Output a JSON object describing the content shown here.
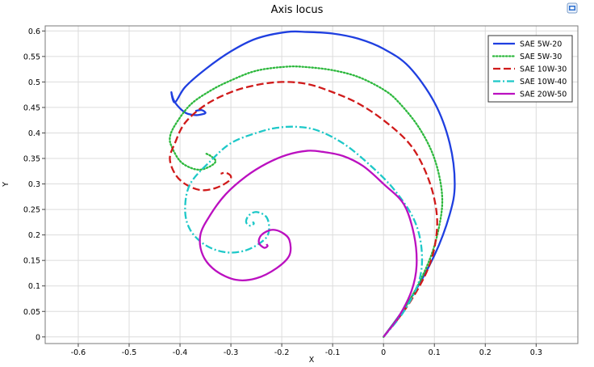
{
  "title": "Axis locus",
  "icons": {
    "export": "export-image-icon"
  },
  "chart_data": {
    "type": "line",
    "title": "Axis locus",
    "xlabel": "X",
    "ylabel": "Y",
    "xlim": [
      -0.665,
      0.382
    ],
    "ylim": [
      -0.013,
      0.61
    ],
    "grid": true,
    "legend_position": "top-right",
    "xticks": [
      -0.6,
      -0.5,
      -0.4,
      -0.3,
      -0.2,
      -0.1,
      0,
      0.1,
      0.2,
      0.3
    ],
    "yticks": [
      0,
      0.05,
      0.1,
      0.15,
      0.2,
      0.25,
      0.3,
      0.35,
      0.4,
      0.45,
      0.5,
      0.55,
      0.6
    ],
    "xtick_labels": [
      "-0.6",
      "-0.5",
      "-0.4",
      "-0.3",
      "-0.2",
      "-0.1",
      "0",
      "0.1",
      "0.2",
      "0.3"
    ],
    "ytick_labels": [
      "0",
      "0.05",
      "0.1",
      "0.15",
      "0.2",
      "0.25",
      "0.3",
      "0.35",
      "0.4",
      "0.45",
      "0.5",
      "0.55",
      "0.6"
    ],
    "series": [
      {
        "name": "SAE 5W-20",
        "color": "#1f3fe0",
        "dash": "solid",
        "x": [
          0.0,
          0.05,
          0.1,
          0.13,
          0.14,
          0.13,
          0.1,
          0.05,
          0.0,
          -0.05,
          -0.1,
          -0.15,
          -0.19,
          -0.25,
          -0.3,
          -0.35,
          -0.39,
          -0.41,
          -0.417,
          -0.41,
          -0.39,
          -0.37,
          -0.355,
          -0.35,
          -0.358,
          -0.37
        ],
        "y": [
          0.0,
          0.07,
          0.16,
          0.24,
          0.3,
          0.38,
          0.46,
          0.53,
          0.565,
          0.585,
          0.595,
          0.598,
          0.598,
          0.585,
          0.56,
          0.525,
          0.49,
          0.46,
          0.48,
          0.46,
          0.44,
          0.435,
          0.437,
          0.44,
          0.445,
          0.443
        ]
      },
      {
        "name": "SAE 5W-30",
        "color": "#2db83d",
        "dash": "dotted",
        "x": [
          0.0,
          0.05,
          0.09,
          0.11,
          0.115,
          0.1,
          0.07,
          0.03,
          0.0,
          -0.05,
          -0.1,
          -0.15,
          -0.19,
          -0.25,
          -0.3,
          -0.34,
          -0.38,
          -0.41,
          -0.42,
          -0.415,
          -0.4,
          -0.38,
          -0.36,
          -0.34,
          -0.33,
          -0.34,
          -0.35
        ],
        "y": [
          0.0,
          0.07,
          0.15,
          0.22,
          0.28,
          0.35,
          0.41,
          0.46,
          0.485,
          0.51,
          0.523,
          0.529,
          0.53,
          0.522,
          0.503,
          0.483,
          0.455,
          0.415,
          0.39,
          0.37,
          0.345,
          0.332,
          0.328,
          0.335,
          0.345,
          0.355,
          0.36
        ]
      },
      {
        "name": "SAE 10W-30",
        "color": "#d01a1a",
        "dash": "dashed",
        "x": [
          0.0,
          0.05,
          0.09,
          0.105,
          0.1,
          0.08,
          0.05,
          0.0,
          -0.05,
          -0.1,
          -0.15,
          -0.2,
          -0.25,
          -0.3,
          -0.35,
          -0.39,
          -0.41,
          -0.42,
          -0.41,
          -0.39,
          -0.36,
          -0.33,
          -0.305,
          -0.3,
          -0.31,
          -0.32
        ],
        "y": [
          0.0,
          0.065,
          0.14,
          0.21,
          0.27,
          0.33,
          0.38,
          0.425,
          0.458,
          0.48,
          0.496,
          0.5,
          0.494,
          0.48,
          0.455,
          0.42,
          0.38,
          0.35,
          0.32,
          0.3,
          0.288,
          0.292,
          0.305,
          0.315,
          0.322,
          0.32
        ]
      },
      {
        "name": "SAE 10W-40",
        "color": "#1ec8c8",
        "dash": "dashdot",
        "x": [
          0.0,
          0.04,
          0.07,
          0.075,
          0.06,
          0.02,
          -0.03,
          -0.08,
          -0.13,
          -0.17,
          -0.21,
          -0.25,
          -0.3,
          -0.34,
          -0.38,
          -0.39,
          -0.38,
          -0.35,
          -0.31,
          -0.27,
          -0.235,
          -0.225,
          -0.23,
          -0.25,
          -0.265,
          -0.27,
          -0.262,
          -0.255,
          -0.257
        ],
        "y": [
          0.0,
          0.05,
          0.11,
          0.17,
          0.23,
          0.29,
          0.34,
          0.38,
          0.405,
          0.412,
          0.41,
          0.4,
          0.38,
          0.345,
          0.3,
          0.25,
          0.21,
          0.18,
          0.166,
          0.17,
          0.19,
          0.21,
          0.235,
          0.245,
          0.238,
          0.225,
          0.218,
          0.222,
          0.226
        ]
      },
      {
        "name": "SAE 20W-50",
        "color": "#bb10c0",
        "dash": "solid",
        "x": [
          0.0,
          0.03,
          0.055,
          0.065,
          0.06,
          0.04,
          0.0,
          -0.04,
          -0.08,
          -0.12,
          -0.15,
          -0.19,
          -0.23,
          -0.27,
          -0.31,
          -0.34,
          -0.36,
          -0.355,
          -0.33,
          -0.29,
          -0.25,
          -0.21,
          -0.185,
          -0.185,
          -0.2,
          -0.22,
          -0.24,
          -0.245,
          -0.235,
          -0.228,
          -0.23
        ],
        "y": [
          0.0,
          0.04,
          0.09,
          0.14,
          0.2,
          0.26,
          0.3,
          0.335,
          0.355,
          0.363,
          0.365,
          0.357,
          0.34,
          0.315,
          0.28,
          0.24,
          0.2,
          0.16,
          0.13,
          0.112,
          0.115,
          0.135,
          0.16,
          0.19,
          0.205,
          0.21,
          0.2,
          0.185,
          0.175,
          0.178,
          0.182
        ]
      }
    ]
  }
}
